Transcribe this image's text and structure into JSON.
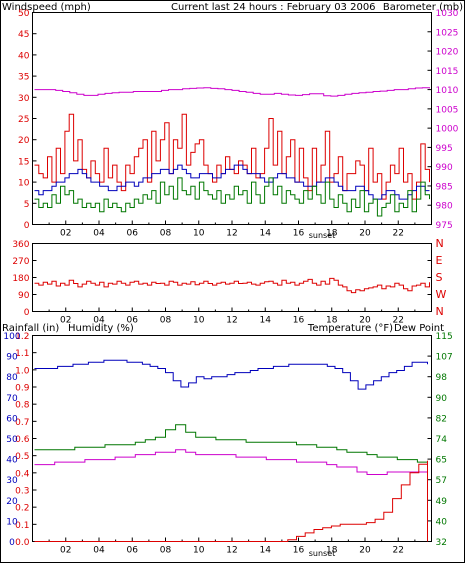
{
  "colors": {
    "red": "#dd0000",
    "green": "#007700",
    "blue": "#0000bb",
    "magenta": "#cc00cc",
    "black": "#000000",
    "frame": "#000000"
  },
  "chart_data": [
    {
      "type": "line",
      "title": "Current last 24 hours : February 03 2006",
      "left_axis_label": "Windspeed (mph)",
      "right_axis_label": "Barometer (mb)",
      "left_ticks": [
        "0",
        "5",
        "10",
        "15",
        "20",
        "25",
        "30",
        "35",
        "40",
        "45",
        "50"
      ],
      "right_ticks": [
        "975",
        "980",
        "985",
        "990",
        "995",
        "1000",
        "1005",
        "1010",
        "1015",
        "1020",
        "1025",
        "1030"
      ],
      "ylim_left": [
        0,
        50
      ],
      "ylim_right": [
        975,
        1030
      ],
      "x_ticks": [
        "02",
        "04",
        "06",
        "08",
        "10",
        "12",
        "14",
        "16",
        "18",
        "20",
        "22"
      ],
      "x_marker": "sunset",
      "series": [
        {
          "color": "red",
          "y_axis": "left",
          "values": [
            14,
            12,
            11,
            16,
            10,
            18,
            12,
            22,
            26,
            15,
            20,
            13,
            11,
            15,
            12,
            10,
            18,
            11,
            14,
            10,
            8,
            14,
            12,
            16,
            18,
            20,
            10,
            22,
            15,
            20,
            24,
            12,
            20,
            18,
            26,
            14,
            17,
            19,
            20,
            14,
            12,
            10,
            14,
            12,
            16,
            13,
            12,
            15,
            14,
            12,
            18,
            11,
            12,
            18,
            25,
            14,
            22,
            12,
            16,
            20,
            10,
            18,
            11,
            8,
            18,
            10,
            14,
            22,
            10,
            12,
            16,
            8,
            12,
            12,
            15,
            14,
            8,
            18,
            10,
            12,
            6,
            10,
            14,
            12,
            18,
            10,
            12,
            6,
            10,
            19,
            13,
            10
          ]
        },
        {
          "color": "blue",
          "y_axis": "left",
          "values": [
            8,
            7,
            8,
            8,
            9,
            10,
            10,
            11,
            12,
            12,
            13,
            12,
            11,
            10,
            10,
            9,
            9,
            8,
            8,
            9,
            9,
            10,
            10,
            9,
            10,
            11,
            11,
            12,
            12,
            13,
            13,
            12,
            13,
            14,
            13,
            12,
            11,
            11,
            12,
            12,
            12,
            11,
            11,
            12,
            13,
            13,
            14,
            14,
            13,
            12,
            12,
            12,
            11,
            10,
            10,
            11,
            12,
            12,
            11,
            11,
            10,
            10,
            9,
            9,
            9,
            10,
            10,
            11,
            11,
            10,
            9,
            8,
            8,
            8,
            9,
            9,
            8,
            7,
            6,
            6,
            7,
            8,
            8,
            7,
            6,
            6,
            7,
            8,
            9,
            9,
            8,
            8
          ]
        },
        {
          "color": "green",
          "y_axis": "left",
          "values": [
            6,
            4,
            5,
            4,
            7,
            5,
            9,
            7,
            8,
            5,
            6,
            4,
            5,
            4,
            5,
            3,
            6,
            4,
            5,
            4,
            3,
            5,
            4,
            6,
            5,
            7,
            6,
            8,
            5,
            10,
            7,
            9,
            6,
            11,
            8,
            7,
            9,
            6,
            10,
            8,
            7,
            6,
            8,
            5,
            7,
            6,
            9,
            7,
            8,
            5,
            10,
            7,
            5,
            9,
            11,
            7,
            9,
            5,
            8,
            7,
            6,
            5,
            8,
            6,
            9,
            7,
            5,
            10,
            6,
            4,
            7,
            5,
            3,
            6,
            4,
            8,
            3,
            5,
            6,
            2,
            4,
            5,
            7,
            3,
            5,
            4,
            8,
            3,
            6,
            10,
            7,
            6
          ]
        },
        {
          "color": "magenta",
          "y_axis": "right",
          "values": [
            1010.0,
            1010.0,
            1010.0,
            1009.8,
            1009.5,
            1009.2,
            1008.8,
            1008.5,
            1008.5,
            1008.8,
            1009.0,
            1009.2,
            1009.3,
            1009.3,
            1009.5,
            1009.5,
            1009.5,
            1009.5,
            1009.8,
            1010.0,
            1010.0,
            1010.2,
            1010.3,
            1010.4,
            1010.5,
            1010.3,
            1010.2,
            1010.0,
            1009.8,
            1009.5,
            1009.3,
            1009.0,
            1008.8,
            1008.8,
            1009.0,
            1008.8,
            1008.6,
            1008.5,
            1008.7,
            1008.9,
            1008.9,
            1008.4,
            1008.3,
            1008.5,
            1008.8,
            1009.0,
            1009.2,
            1009.3,
            1009.5,
            1009.6,
            1009.8,
            1010.0,
            1010.0,
            1010.2,
            1010.4,
            1010.5,
            1010.3
          ]
        }
      ]
    },
    {
      "type": "line",
      "right_axis_label": [
        "N",
        "W",
        "S",
        "E",
        "N"
      ],
      "left_ticks": [
        "0",
        "90",
        "180",
        "270",
        "360"
      ],
      "ylim": [
        0,
        360
      ],
      "x_ticks": [
        "02",
        "04",
        "06",
        "08",
        "10",
        "12",
        "14",
        "16",
        "18",
        "20",
        "22"
      ],
      "series": [
        {
          "color": "red",
          "values": [
            150,
            140,
            155,
            145,
            160,
            135,
            150,
            140,
            165,
            148,
            130,
            145,
            160,
            150,
            140,
            155,
            130,
            150,
            145,
            160,
            150,
            140,
            155,
            160,
            145,
            150,
            140,
            155,
            148,
            150,
            140,
            160,
            155,
            140,
            150,
            145,
            158,
            142,
            150,
            160,
            148,
            140,
            150,
            155,
            145,
            150,
            160,
            148,
            150,
            155,
            145,
            140,
            150,
            158,
            160,
            150,
            140,
            165,
            150,
            155,
            140,
            150,
            160,
            170,
            150,
            140,
            160,
            145,
            175,
            165,
            140,
            130,
            110,
            100,
            115,
            110,
            120,
            125,
            130,
            140,
            120,
            135,
            130,
            150,
            140,
            120,
            110,
            135,
            140,
            150,
            130,
            155
          ]
        }
      ]
    },
    {
      "type": "line",
      "left_axis_label_rain": "Rainfall (in)",
      "left_axis_label_hum": "Humidity (%)",
      "right_axis_label_temp": "Temperature (°F)",
      "right_axis_label_dew": "Dew Point",
      "rain_ticks": [
        "0.0",
        "0.1",
        "0.2",
        "0.3",
        "0.4",
        "0.5",
        "0.6",
        "0.7",
        "0.8",
        "0.9",
        "1.0",
        "1.1",
        "1.2"
      ],
      "humidity_ticks": [
        "0",
        "10",
        "20",
        "30",
        "40",
        "50",
        "60",
        "70",
        "80",
        "90",
        "100"
      ],
      "temp_ticks": [
        "32",
        "40",
        "49",
        "57",
        "65",
        "74",
        "82",
        "90",
        "98",
        "107",
        "115"
      ],
      "ylim_rain": [
        0,
        1.2
      ],
      "ylim_humidity": [
        0,
        100
      ],
      "ylim_temp": [
        32,
        115
      ],
      "x_ticks": [
        "02",
        "04",
        "06",
        "08",
        "10",
        "12",
        "14",
        "16",
        "18",
        "20",
        "22"
      ],
      "x_marker": "sunset",
      "series": [
        {
          "color": "blue",
          "y_axis": "humidity",
          "values": [
            84,
            84,
            84,
            85,
            85,
            86,
            86,
            87,
            87,
            88,
            88,
            88,
            87,
            87,
            86,
            85,
            84,
            82,
            78,
            75,
            77,
            80,
            79,
            80,
            80,
            81,
            82,
            82,
            83,
            84,
            84,
            85,
            85,
            86,
            86,
            86,
            86,
            86,
            85,
            84,
            82,
            78,
            74,
            76,
            78,
            80,
            82,
            83,
            85,
            87,
            87,
            86
          ]
        },
        {
          "color": "green",
          "y_axis": "temp",
          "values": [
            69,
            69,
            69,
            69,
            70,
            70,
            70,
            71,
            71,
            71,
            72,
            73,
            74,
            77,
            79,
            76,
            74,
            74,
            73,
            73,
            73,
            72,
            72,
            72,
            72,
            72,
            71,
            71,
            70,
            70,
            69,
            68,
            68,
            67,
            66,
            66,
            65,
            65,
            64,
            64
          ]
        },
        {
          "color": "magenta",
          "y_axis": "temp",
          "values": [
            63,
            63,
            64,
            64,
            64,
            65,
            65,
            65,
            66,
            66,
            67,
            67,
            68,
            68,
            69,
            68,
            67,
            67,
            67,
            67,
            66,
            66,
            66,
            65,
            65,
            65,
            64,
            64,
            64,
            63,
            62,
            62,
            60,
            59,
            59,
            60,
            60,
            60,
            60,
            60
          ]
        },
        {
          "color": "red",
          "y_axis": "rain",
          "values": [
            0,
            0,
            0,
            0,
            0,
            0,
            0,
            0,
            0,
            0,
            0,
            0,
            0,
            0,
            0,
            0,
            0,
            0,
            0,
            0,
            0,
            0,
            0,
            0,
            0,
            0,
            0,
            0,
            0,
            0.01,
            0.03,
            0.05,
            0.07,
            0.08,
            0.09,
            0.1,
            0.1,
            0.1,
            0.11,
            0.13,
            0.17,
            0.25,
            0.33,
            0.4,
            0.45,
            0.47
          ]
        }
      ]
    }
  ]
}
